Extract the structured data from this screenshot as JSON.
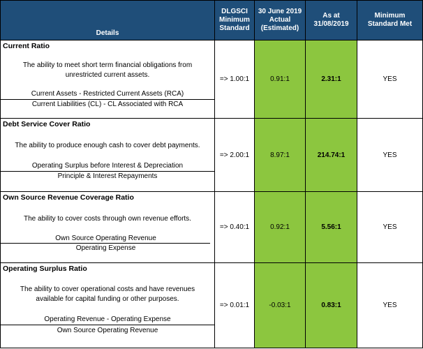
{
  "headers": {
    "details": "Details",
    "dlgsci_line1": "DLGSCI",
    "dlgsci_line2": "Minimum",
    "dlgsci_line3": "Standard",
    "actual_line1": "30 June 2019",
    "actual_line2": "Actual",
    "actual_line3": "(Estimated)",
    "asat_line1": "As at",
    "asat_line2": "31/08/2019",
    "met_line1": "Minimum",
    "met_line2": "Standard Met"
  },
  "ratios": [
    {
      "title": "Current Ratio",
      "desc_line1": "The ability to meet short term financial obligations from",
      "desc_line2": "unrestricted current assets.",
      "numerator": "Current Assets - Restricted Current Assets (RCA)",
      "denominator": "Current Liabilities (CL) - CL Associated with RCA",
      "min_standard": "=> 1.00:1",
      "actual": "0.91:1",
      "as_at": "2.31:1",
      "met": "YES"
    },
    {
      "title": "Debt Service Cover Ratio",
      "desc_line1": "The ability to produce enough cash to cover debt payments.",
      "desc_line2": "",
      "numerator": "Operating Surplus before Interest & Depreciation",
      "denominator": "Principle & Interest Repayments",
      "min_standard": "=> 2.00:1",
      "actual": "8.97:1",
      "as_at": "214.74:1",
      "met": "YES"
    },
    {
      "title": "Own Source Revenue Coverage Ratio",
      "desc_line1": "The ability to cover costs through own revenue efforts.",
      "desc_line2": "",
      "numerator": "Own Source Operating Revenue",
      "denominator": "Operating Expense",
      "min_standard": "=> 0.40:1",
      "actual": "0.92:1",
      "as_at": "5.56:1",
      "met": "YES"
    },
    {
      "title": "Operating Surplus Ratio",
      "desc_line1": "The ability to cover operational costs and have revenues",
      "desc_line2": "available for capital funding or other purposes.",
      "numerator": "Operating Revenue - Operating Expense",
      "denominator": "Own Source Operating Revenue",
      "min_standard": "=> 0.01:1",
      "actual": "-0.03:1",
      "as_at": "0.83:1",
      "met": "YES"
    }
  ]
}
